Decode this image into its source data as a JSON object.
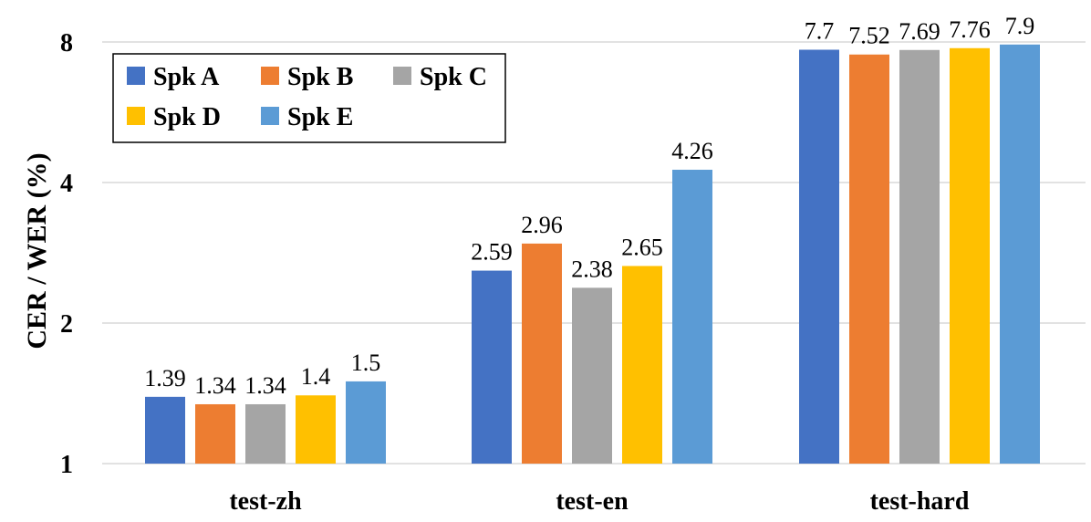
{
  "chart_data": {
    "type": "bar",
    "yscale": "log2",
    "ylabel": "CER / WER (%)",
    "xlabel": "",
    "ylim": [
      1,
      8
    ],
    "yticks": [
      1,
      2,
      4,
      8
    ],
    "ytick_labels": [
      "1",
      "2",
      "4",
      "8"
    ],
    "categories": [
      "test-zh",
      "test-en",
      "test-hard"
    ],
    "grid": true,
    "legend_position": "top-left",
    "series": [
      {
        "name": "Spk A",
        "color": "#4472C4",
        "values": [
          1.39,
          2.59,
          7.7
        ],
        "labels": [
          "1.39",
          "2.59",
          "7.7"
        ]
      },
      {
        "name": "Spk B",
        "color": "#ED7D31",
        "values": [
          1.34,
          2.96,
          7.52
        ],
        "labels": [
          "1.34",
          "2.96",
          "7.52"
        ]
      },
      {
        "name": "Spk C",
        "color": "#A5A5A5",
        "values": [
          1.34,
          2.38,
          7.69
        ],
        "labels": [
          "1.34",
          "2.38",
          "7.69"
        ]
      },
      {
        "name": "Spk D",
        "color": "#FFC000",
        "values": [
          1.4,
          2.65,
          7.76
        ],
        "labels": [
          "1.4",
          "2.65",
          "7.76"
        ]
      },
      {
        "name": "Spk E",
        "color": "#5B9BD5",
        "values": [
          1.5,
          4.26,
          7.9
        ],
        "labels": [
          "1.5",
          "4.26",
          "7.9"
        ]
      }
    ]
  }
}
